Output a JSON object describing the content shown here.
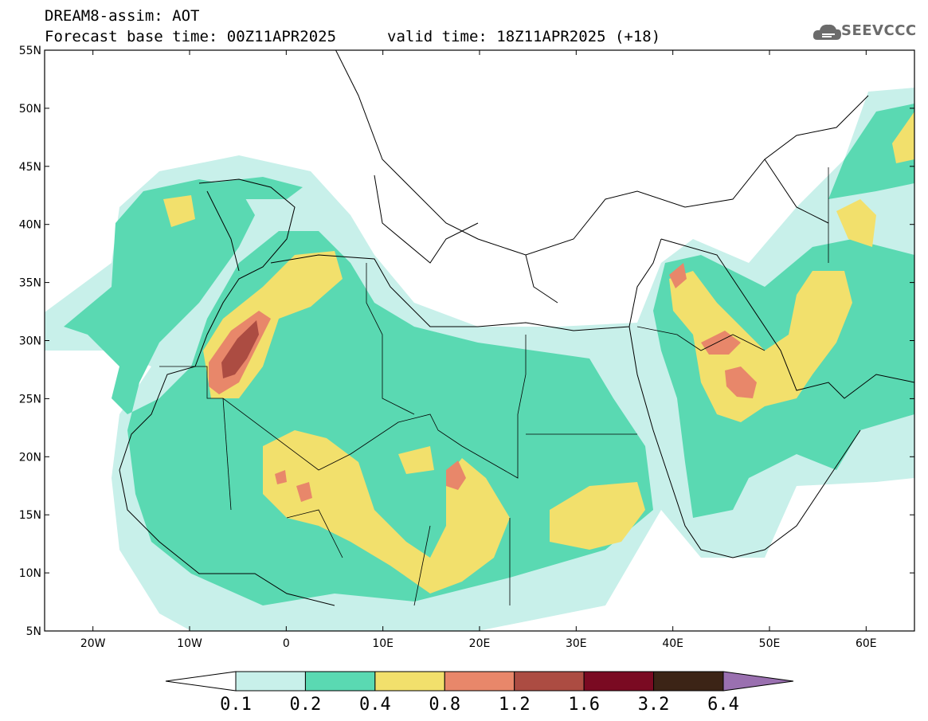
{
  "header": {
    "title_line1": "DREAM8-assim: AOT",
    "title_line2": "Forecast base time: 00Z11APR2025",
    "valid_time": "valid time: 18Z11APR2025 (+18)",
    "logo_text": "SEEVCCC"
  },
  "map": {
    "lat_labels": [
      "55N",
      "50N",
      "45N",
      "40N",
      "35N",
      "30N",
      "25N",
      "20N",
      "15N",
      "10N",
      "5N"
    ],
    "lon_labels": [
      "20W",
      "10W",
      "0",
      "10E",
      "20E",
      "30E",
      "40E",
      "50E",
      "60E"
    ]
  },
  "colorbar": {
    "labels": [
      "0.1",
      "0.2",
      "0.4",
      "0.8",
      "1.2",
      "1.6",
      "3.2",
      "6.4"
    ],
    "colors": [
      "#c8f0ea",
      "#5ad9b2",
      "#f2e06c",
      "#e8876a",
      "#ac4c42",
      "#7a0a22",
      "#3c2416",
      "#9a70b0"
    ],
    "under_color": "#ffffff"
  }
}
